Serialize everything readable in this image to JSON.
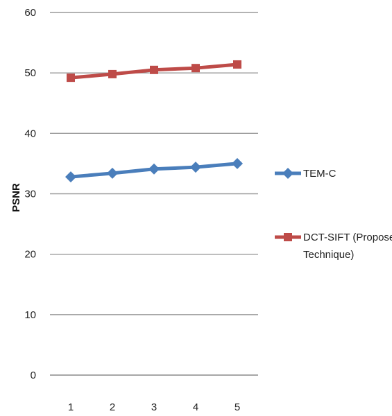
{
  "chart_data": {
    "type": "line",
    "title": "",
    "xlabel": "",
    "ylabel": "PSNR",
    "x": [
      "1",
      "2",
      "3",
      "4",
      "5"
    ],
    "ylim": [
      0,
      60
    ],
    "yticks": [
      "0",
      "10",
      "20",
      "30",
      "40",
      "50",
      "60"
    ],
    "grid": true,
    "legend_position": "right",
    "series": [
      {
        "name": "TEM-C",
        "values": [
          32.8,
          33.4,
          34.1,
          34.4,
          35.0
        ],
        "color": "#4a7ebb",
        "marker": "diamond-icon"
      },
      {
        "name": "DCT-SIFT (Proposed Technique)",
        "legend_lines": [
          "DCT-SIFT (Proposed",
          "Technique)"
        ],
        "values": [
          49.2,
          49.8,
          50.5,
          50.8,
          51.4
        ],
        "color": "#be4b48",
        "marker": "square-icon"
      }
    ]
  }
}
